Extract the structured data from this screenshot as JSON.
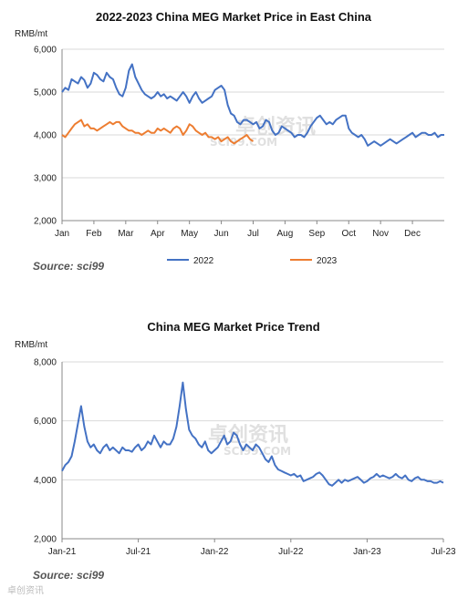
{
  "watermark": {
    "brand": "卓创资讯",
    "site": "SCI99.COM",
    "corner": "卓创资讯"
  },
  "chart_data": [
    {
      "type": "line",
      "title": "2022-2023  China MEG Market Price in East China",
      "unit": "RMB/mt",
      "ylim": [
        2000,
        6000
      ],
      "yticks": [
        "2,000",
        "3,000",
        "4,000",
        "5,000",
        "6,000"
      ],
      "ytick_values": [
        2000,
        3000,
        4000,
        5000,
        6000
      ],
      "x_domain": [
        0,
        12
      ],
      "categories": [
        "Jan",
        "Feb",
        "Mar",
        "Apr",
        "May",
        "Jun",
        "Jul",
        "Aug",
        "Sep",
        "Oct",
        "Nov",
        "Dec"
      ],
      "grid": true,
      "legend_position": "bottom",
      "source": "Source: sci99",
      "series": [
        {
          "name": "2022",
          "color": "#4472C4",
          "x": [
            0.0,
            0.1,
            0.2,
            0.3,
            0.4,
            0.5,
            0.6,
            0.7,
            0.8,
            0.9,
            1.0,
            1.1,
            1.2,
            1.3,
            1.4,
            1.5,
            1.6,
            1.7,
            1.8,
            1.9,
            2.0,
            2.1,
            2.2,
            2.3,
            2.4,
            2.5,
            2.6,
            2.7,
            2.8,
            2.9,
            3.0,
            3.1,
            3.2,
            3.3,
            3.4,
            3.5,
            3.6,
            3.7,
            3.8,
            3.9,
            4.0,
            4.1,
            4.2,
            4.3,
            4.4,
            4.5,
            4.6,
            4.7,
            4.8,
            4.9,
            5.0,
            5.1,
            5.2,
            5.3,
            5.4,
            5.5,
            5.6,
            5.7,
            5.8,
            5.9,
            6.0,
            6.1,
            6.2,
            6.3,
            6.4,
            6.5,
            6.6,
            6.7,
            6.8,
            6.9,
            7.0,
            7.1,
            7.2,
            7.3,
            7.4,
            7.5,
            7.6,
            7.7,
            7.8,
            7.9,
            8.0,
            8.1,
            8.2,
            8.3,
            8.4,
            8.5,
            8.6,
            8.7,
            8.8,
            8.9,
            9.0,
            9.1,
            9.2,
            9.3,
            9.4,
            9.5,
            9.6,
            9.7,
            9.8,
            9.9,
            10.0,
            10.1,
            10.2,
            10.3,
            10.4,
            10.5,
            10.6,
            10.7,
            10.8,
            10.9,
            11.0,
            11.1,
            11.2,
            11.3,
            11.4,
            11.5,
            11.6,
            11.7,
            11.8,
            11.9,
            12.0
          ],
          "values": [
            5000,
            5100,
            5050,
            5300,
            5250,
            5200,
            5350,
            5280,
            5100,
            5200,
            5450,
            5400,
            5300,
            5250,
            5450,
            5350,
            5300,
            5100,
            4950,
            4900,
            5100,
            5500,
            5650,
            5350,
            5200,
            5050,
            4950,
            4900,
            4850,
            4900,
            5000,
            4900,
            4950,
            4850,
            4900,
            4850,
            4800,
            4900,
            5000,
            4900,
            4750,
            4900,
            5000,
            4850,
            4750,
            4800,
            4850,
            4900,
            5050,
            5100,
            5150,
            5050,
            4700,
            4500,
            4450,
            4300,
            4250,
            4350,
            4350,
            4300,
            4250,
            4300,
            4150,
            4200,
            4350,
            4300,
            4100,
            4000,
            4050,
            4200,
            4150,
            4100,
            4050,
            3950,
            4000,
            4000,
            3950,
            4050,
            4200,
            4300,
            4400,
            4450,
            4350,
            4250,
            4300,
            4250,
            4350,
            4400,
            4450,
            4450,
            4150,
            4050,
            4000,
            3950,
            4000,
            3900,
            3750,
            3800,
            3850,
            3800,
            3750,
            3800,
            3850,
            3900,
            3850,
            3800,
            3850,
            3900,
            3950,
            4000,
            4050,
            3950,
            4000,
            4050,
            4050,
            4000,
            4000,
            4050,
            3950,
            4000,
            4000
          ]
        },
        {
          "name": "2023",
          "color": "#ED7D31",
          "x": [
            0.0,
            0.1,
            0.2,
            0.3,
            0.4,
            0.5,
            0.6,
            0.7,
            0.8,
            0.9,
            1.0,
            1.1,
            1.2,
            1.3,
            1.4,
            1.5,
            1.6,
            1.7,
            1.8,
            1.9,
            2.0,
            2.1,
            2.2,
            2.3,
            2.4,
            2.5,
            2.6,
            2.7,
            2.8,
            2.9,
            3.0,
            3.1,
            3.2,
            3.3,
            3.4,
            3.5,
            3.6,
            3.7,
            3.8,
            3.9,
            4.0,
            4.1,
            4.2,
            4.3,
            4.4,
            4.5,
            4.6,
            4.7,
            4.8,
            4.9,
            5.0,
            5.1,
            5.2,
            5.3,
            5.4,
            5.5,
            5.6,
            5.7,
            5.8,
            5.9,
            6.0
          ],
          "values": [
            4000,
            3950,
            4050,
            4150,
            4250,
            4300,
            4350,
            4200,
            4250,
            4150,
            4150,
            4100,
            4150,
            4200,
            4250,
            4300,
            4250,
            4300,
            4300,
            4200,
            4150,
            4100,
            4100,
            4050,
            4050,
            4000,
            4050,
            4100,
            4050,
            4050,
            4150,
            4100,
            4150,
            4100,
            4050,
            4150,
            4200,
            4150,
            4000,
            4100,
            4250,
            4200,
            4100,
            4050,
            4000,
            4050,
            3950,
            3950,
            3900,
            3950,
            3850,
            3900,
            3950,
            3850,
            3800,
            3850,
            3900,
            3950,
            4000,
            3900,
            3850
          ]
        }
      ]
    },
    {
      "type": "line",
      "title": "China MEG Market Price Trend",
      "unit": "RMB/mt",
      "ylim": [
        2000,
        8000
      ],
      "yticks": [
        "2,000",
        "4,000",
        "6,000",
        "8,000"
      ],
      "ytick_values": [
        2000,
        4000,
        6000,
        8000
      ],
      "x_domain": [
        0,
        30
      ],
      "xticks": [
        "Jan-21",
        "Jul-21",
        "Jan-22",
        "Jul-22",
        "Jan-23",
        "Jul-23"
      ],
      "xtick_values": [
        0,
        6,
        12,
        18,
        24,
        30
      ],
      "grid": true,
      "source": "Source: sci99",
      "series": [
        {
          "name": "MEG",
          "color": "#4472C4",
          "x": [
            0.0,
            0.25,
            0.5,
            0.75,
            1.0,
            1.25,
            1.5,
            1.75,
            2.0,
            2.25,
            2.5,
            2.75,
            3.0,
            3.25,
            3.5,
            3.75,
            4.0,
            4.25,
            4.5,
            4.75,
            5.0,
            5.25,
            5.5,
            5.75,
            6.0,
            6.25,
            6.5,
            6.75,
            7.0,
            7.25,
            7.5,
            7.75,
            8.0,
            8.25,
            8.5,
            8.75,
            9.0,
            9.25,
            9.5,
            9.75,
            10.0,
            10.25,
            10.5,
            10.75,
            11.0,
            11.25,
            11.5,
            11.75,
            12.0,
            12.25,
            12.5,
            12.75,
            13.0,
            13.25,
            13.5,
            13.75,
            14.0,
            14.25,
            14.5,
            14.75,
            15.0,
            15.25,
            15.5,
            15.75,
            16.0,
            16.25,
            16.5,
            16.75,
            17.0,
            17.25,
            17.5,
            17.75,
            18.0,
            18.25,
            18.5,
            18.75,
            19.0,
            19.25,
            19.5,
            19.75,
            20.0,
            20.25,
            20.5,
            20.75,
            21.0,
            21.25,
            21.5,
            21.75,
            22.0,
            22.25,
            22.5,
            22.75,
            23.0,
            23.25,
            23.5,
            23.75,
            24.0,
            24.25,
            24.5,
            24.75,
            25.0,
            25.25,
            25.5,
            25.75,
            26.0,
            26.25,
            26.5,
            26.75,
            27.0,
            27.25,
            27.5,
            27.75,
            28.0,
            28.25,
            28.5,
            28.75,
            29.0,
            29.25,
            29.5,
            29.75,
            30.0
          ],
          "values": [
            4300,
            4500,
            4600,
            4800,
            5300,
            5900,
            6500,
            5800,
            5300,
            5100,
            5200,
            5000,
            4900,
            5100,
            5200,
            5000,
            5100,
            5000,
            4900,
            5100,
            5000,
            5000,
            4950,
            5100,
            5200,
            5000,
            5100,
            5300,
            5200,
            5500,
            5300,
            5100,
            5300,
            5200,
            5200,
            5400,
            5800,
            6500,
            7300,
            6400,
            5700,
            5500,
            5400,
            5200,
            5100,
            5300,
            5000,
            4900,
            5000,
            5100,
            5300,
            5500,
            5200,
            5300,
            5600,
            5500,
            5200,
            5000,
            5200,
            5100,
            5000,
            5200,
            5100,
            4900,
            4700,
            4600,
            4800,
            4500,
            4350,
            4300,
            4250,
            4200,
            4150,
            4200,
            4100,
            4150,
            3950,
            4000,
            4050,
            4100,
            4200,
            4250,
            4150,
            4000,
            3850,
            3800,
            3900,
            4000,
            3900,
            4000,
            3950,
            4000,
            4050,
            4100,
            4000,
            3900,
            3950,
            4050,
            4100,
            4200,
            4100,
            4150,
            4100,
            4050,
            4100,
            4200,
            4100,
            4050,
            4150,
            4000,
            3950,
            4050,
            4100,
            4000,
            4000,
            3950,
            3950,
            3900,
            3900,
            3950,
            3900
          ]
        }
      ]
    }
  ]
}
